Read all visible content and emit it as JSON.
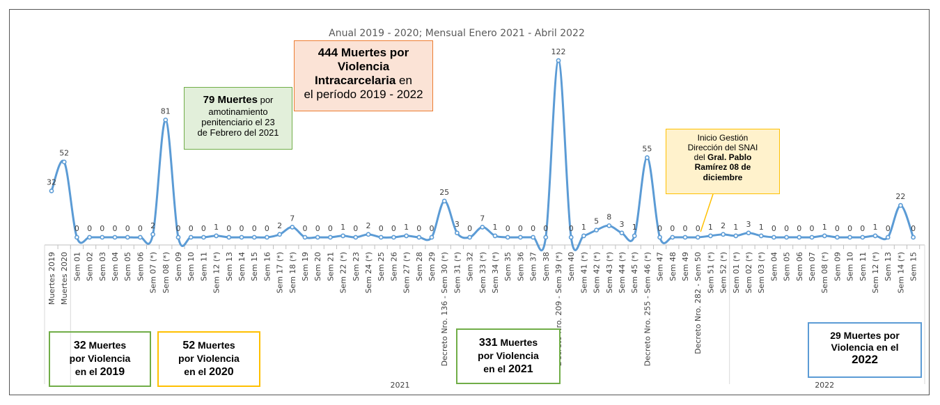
{
  "chart_data": {
    "type": "line",
    "title": "Anual 2019 - 2020; Mensual Enero 2021 - Abril 2022",
    "categories": [
      "Muertes 2019",
      "Muertes 2020",
      "Sem 01",
      "Sem 02",
      "Sem 03",
      "Sem 04",
      "Sem 05",
      "Sem 06",
      "Sem 07 (*)",
      "Sem 08 (*)",
      "Sem 09",
      "Sem 10",
      "Sem 11",
      "Sem 12 (*)",
      "Sem 13",
      "Sem 14",
      "Sem 15",
      "Sem 16",
      "Sem 17 (*)",
      "Sem 18 (*)",
      "Sem 19",
      "Sem 20",
      "Sem 21",
      "Sem 22 (*)",
      "Sem 23",
      "Sem 24 (*)",
      "Sem 25",
      "Sem 26",
      "Sem 27 (*)",
      "Sem 28",
      "Sem 29",
      "Decreto Nro. 136 - Sem 30 (*)",
      "Sem 31 (*)",
      "Sem 32",
      "Sem 33 (*)",
      "Sem 34 (*)",
      "Sem 35",
      "Sem 36",
      "Sem 37",
      "Sem 38",
      "Decreto Nro. 209 - Sem 39 (*)",
      "Sem 40",
      "Sem 41 (*)",
      "Sem 42 (*)",
      "Sem 43 (*)",
      "Sem 44 (*)",
      "Sem 45 (*)",
      "Decreto Nro. 255 - Sem 46 (*)",
      "Sem 47",
      "Sem 48",
      "Sem 49",
      "Decreto Nro. 282 - Sem 50",
      "Sem 51 (*)",
      "Sem 52 (*)",
      "Sem 01 (*)",
      "Sem 02 (*)",
      "Sem 03 (*)",
      "Sem 04",
      "Sem 05",
      "Sem 06",
      "Sem 07",
      "Sem 08 (*)",
      "Sem 09",
      "Sem 10",
      "Sem 11",
      "Sem 12 (*)",
      "Sem 13",
      "Sem 14 (*)",
      "Sem 15"
    ],
    "values": [
      32,
      52,
      0,
      0,
      0,
      0,
      0,
      0,
      2,
      81,
      0,
      0,
      0,
      1,
      0,
      0,
      0,
      0,
      2,
      7,
      0,
      0,
      0,
      1,
      0,
      2,
      0,
      0,
      1,
      0,
      0,
      25,
      3,
      0,
      7,
      1,
      0,
      0,
      0,
      0,
      122,
      0,
      1,
      5,
      8,
      3,
      1,
      55,
      0,
      0,
      0,
      0,
      1,
      2,
      1,
      3,
      1,
      0,
      0,
      0,
      0,
      1,
      0,
      0,
      0,
      1,
      0,
      22,
      0
    ],
    "ylim": [
      0,
      122
    ],
    "grid": false,
    "year_groups": [
      {
        "label": "2021",
        "from": 2,
        "to": 53
      },
      {
        "label": "2022",
        "from": 54,
        "to": 68
      }
    ],
    "series_color": "#5b9bd5"
  },
  "annotations": {
    "total": {
      "l1a": "444",
      "l1b": " Muertes por",
      "l2": "Violencia",
      "l3a": "Intracarcelaria",
      "l3b": " en",
      "l4": "el período 2019 - 2022"
    },
    "riot": {
      "bold": "79 Muertes",
      "l1b": " por",
      "l2": "amotinamiento",
      "l3": "penitenciario el 23",
      "l4": "de Febrero del 2021"
    },
    "snai": {
      "l1": "Inicio Gestión",
      "l2": "Dirección del SNAI",
      "l3a": "del ",
      "l3b": "Gral. Pablo",
      "l4": "Ramírez 08 de",
      "l5": "diciembre"
    },
    "y2019": {
      "l1a": "32",
      "l1b": " Muertes",
      "l2": "por Violencia",
      "l3a": "en el ",
      "l3b": "2019"
    },
    "y2020": {
      "l1a": "52",
      "l1b": " Muertes",
      "l2": "por Violencia",
      "l3a": "en el ",
      "l3b": "2020"
    },
    "y2021": {
      "l1a": "331",
      "l1b": " Muertes",
      "l2": "por Violencia",
      "l3a": "en el ",
      "l3b": "2021"
    },
    "y2022": {
      "l1a": "29",
      "l1b": " Muertes por",
      "l2": "Violencia en el",
      "l3": "2022"
    }
  }
}
